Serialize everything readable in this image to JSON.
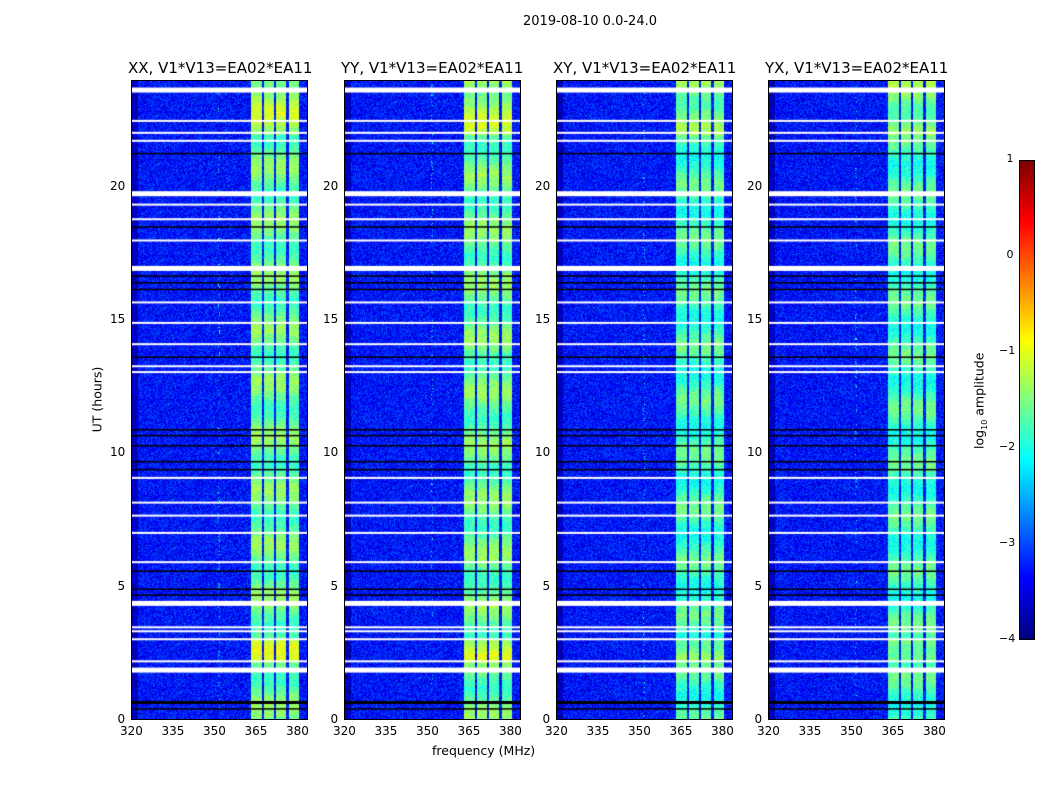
{
  "chart_data": {
    "type": "heatmap",
    "title": "2019-08-10 0.0-24.0",
    "xlabel": "frequency (MHz)",
    "ylabel": "UT (hours)",
    "xlim": [
      320,
      384
    ],
    "ylim": [
      0,
      24
    ],
    "xticks": [
      "320",
      "335",
      "350",
      "365",
      "380"
    ],
    "xtick_values": [
      320,
      335,
      350,
      365,
      380
    ],
    "yticks": [
      "0",
      "5",
      "10",
      "15",
      "20"
    ],
    "ytick_values": [
      0,
      5,
      10,
      15,
      20
    ],
    "panels": [
      {
        "title": "XX, V1*V13=EA02*EA11"
      },
      {
        "title": "YY, V1*V13=EA02*EA11"
      },
      {
        "title": "XY, V1*V13=EA02*EA11"
      },
      {
        "title": "YX, V1*V13=EA02*EA11"
      }
    ],
    "background_log_amplitude": -3.3,
    "band_log_amplitude": -1.6,
    "rfi_band_mhz": [
      [
        363.5,
        367.2
      ],
      [
        368.2,
        371.7
      ],
      [
        372.6,
        376.2
      ],
      [
        377.2,
        381
      ]
    ],
    "flagged_white_ut": [
      23.66,
      22.5,
      22.05,
      21.75,
      19.76,
      19.35,
      18.8,
      18.0,
      16.95,
      15.67,
      14.9,
      14.1,
      13.27,
      13.05,
      9.07,
      8.14,
      7.65,
      7.0,
      5.9,
      4.35,
      3.45,
      3.3,
      3.0,
      2.17,
      1.84
    ],
    "flagged_black_ut": [
      21.26,
      18.5,
      16.65,
      16.4,
      16.15,
      13.6,
      10.87,
      10.65,
      10.27,
      9.67,
      9.37,
      5.55,
      4.87,
      4.65,
      0.64,
      0.37
    ],
    "colorbar": {
      "label_prefix": "log",
      "label_sub": "10",
      "label_suffix": " amplitude",
      "range": [
        -4,
        1
      ],
      "ticks": [
        "1",
        "0",
        "−1",
        "−2",
        "−3",
        "−4"
      ],
      "tick_values": [
        1,
        0,
        -1,
        -2,
        -3,
        -4
      ],
      "colormap": "jet"
    }
  }
}
